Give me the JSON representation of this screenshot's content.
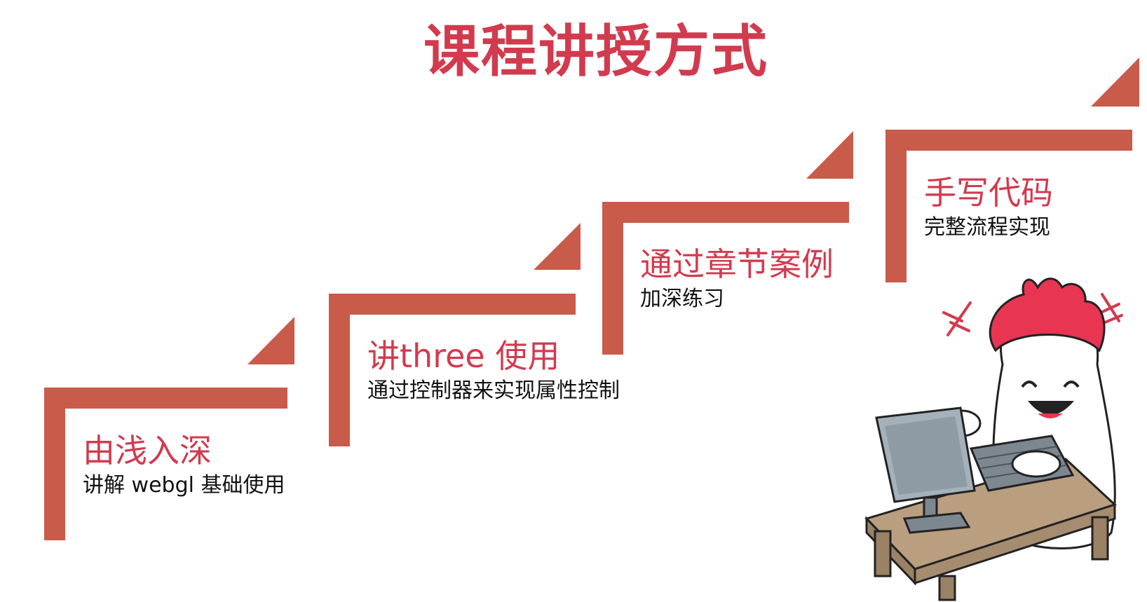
{
  "title": "课程讲授方式",
  "colors": {
    "stair": "#c95b4b",
    "accent": "#d23a4e",
    "text": "#111111"
  },
  "steps": [
    {
      "title": "由浅入深",
      "subtitle": "讲解 webgl 基础使用"
    },
    {
      "title": "讲three 使用",
      "subtitle": "通过控制器来实现属性控制"
    },
    {
      "title": "通过章节案例",
      "subtitle": "加深练习"
    },
    {
      "title": "手写代码",
      "subtitle": "完整流程实现"
    }
  ],
  "illustration": {
    "character": "flame-head-mascot",
    "objects": [
      "computer-monitor-icon",
      "keyboard-icon",
      "wooden-desk"
    ]
  }
}
